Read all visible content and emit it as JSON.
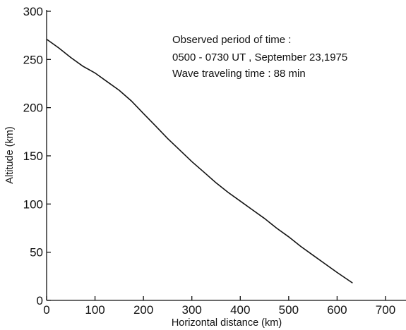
{
  "chart_data": {
    "type": "line",
    "title": "",
    "xlabel": "Horizontal distance (km)",
    "ylabel": "Altitude (km)",
    "xlim": [
      0,
      750
    ],
    "ylim": [
      0,
      300
    ],
    "xticks": [
      0,
      100,
      200,
      300,
      400,
      500,
      600,
      700
    ],
    "yticks": [
      0,
      50,
      100,
      150,
      200,
      250,
      300
    ],
    "grid": false,
    "annotations": [
      "Observed period of time :",
      "0500 - 0730 UT , September 23,1975",
      "Wave traveling time : 88 min"
    ],
    "series": [
      {
        "x": [
          0,
          25,
          50,
          75,
          100,
          125,
          150,
          175,
          200,
          225,
          250,
          275,
          300,
          325,
          350,
          375,
          400,
          425,
          450,
          475,
          500,
          525,
          550,
          575,
          600,
          632
        ],
        "y": [
          271,
          262,
          252,
          243,
          236,
          227,
          218,
          207,
          194,
          181,
          168,
          156,
          144,
          133,
          122,
          112,
          103,
          94,
          85,
          75,
          66,
          56,
          47,
          38,
          29,
          18
        ]
      }
    ]
  }
}
